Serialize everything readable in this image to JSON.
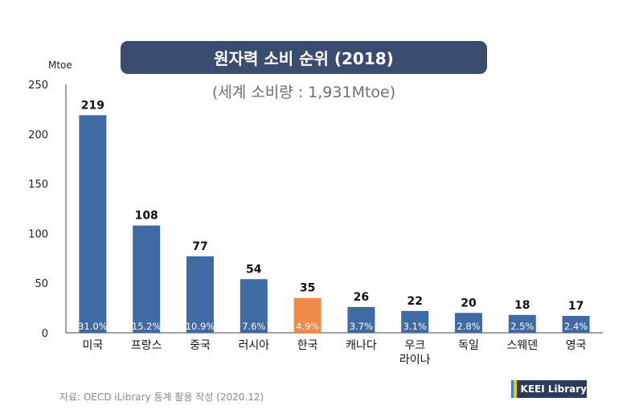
{
  "chart_data": {
    "type": "bar",
    "title": "원자력 소비 순위 (2018)",
    "subtitle": "(세계 소비량 : 1,931Mtoe)",
    "ylabel": "Mtoe",
    "ylim": [
      0,
      250
    ],
    "yticks": [
      0,
      50,
      100,
      150,
      200,
      250
    ],
    "categories": [
      "미국",
      "프랑스",
      "중국",
      "러시아",
      "한국",
      "캐나다",
      "우크라이나",
      "독일",
      "스웨덴",
      "영국"
    ],
    "category_lines": [
      [
        "미국"
      ],
      [
        "프랑스"
      ],
      [
        "중국"
      ],
      [
        "러시아"
      ],
      [
        "한국"
      ],
      [
        "캐나다"
      ],
      [
        "우크",
        "라이나"
      ],
      [
        "독일"
      ],
      [
        "스웨덴"
      ],
      [
        "영국"
      ]
    ],
    "values": [
      219,
      108,
      77,
      54,
      35,
      26,
      22,
      20,
      18,
      17
    ],
    "shares": [
      "31.0%",
      "15.2%",
      "10.9%",
      "7.6%",
      "4.9%",
      "3.7%",
      "3.1%",
      "2.8%",
      "2.5%",
      "2.4%"
    ],
    "bar_color": "#3f6aa4",
    "highlight_color": "#ef8a47",
    "highlight_category": "한국",
    "grid": false,
    "legend": "none"
  },
  "source": "자료: OECD iLibrary 통계 활용 작성 (2020.12)",
  "logo": {
    "text": "KEEI Library",
    "stripe_colors": [
      "#2f8ac9",
      "#f2c318"
    ]
  }
}
